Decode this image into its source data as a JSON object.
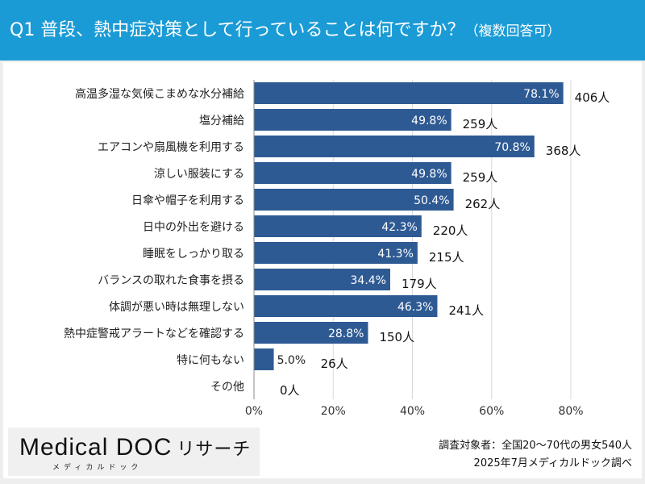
{
  "header": {
    "title": "Q1 普段、熱中症対策として行っていることは何ですか？",
    "subtitle": "（複数回答可）"
  },
  "chart_data": {
    "type": "bar",
    "orientation": "horizontal",
    "categories": [
      "高温多湿な気候こまめな水分補給",
      "塩分補給",
      "エアコンや扇風機を利用する",
      "涼しい服装にする",
      "日傘や帽子を利用する",
      "日中の外出を避ける",
      "睡眠をしっかり取る",
      "バランスの取れた食事を摂る",
      "体調が悪い時は無理しない",
      "熱中症警戒アラートなどを確認する",
      "特に何もない",
      "その他"
    ],
    "values": [
      78.1,
      49.8,
      70.8,
      49.8,
      50.4,
      42.3,
      41.3,
      34.4,
      46.3,
      28.8,
      5.0,
      0
    ],
    "value_labels": [
      "78.1%",
      "49.8%",
      "70.8%",
      "49.8%",
      "50.4%",
      "42.3%",
      "41.3%",
      "34.4%",
      "46.3%",
      "28.8%",
      "5.0%",
      ""
    ],
    "counts": [
      "406人",
      "259人",
      "368人",
      "259人",
      "262人",
      "220人",
      "215人",
      "179人",
      "241人",
      "150人",
      "26人",
      "0人"
    ],
    "xlim": [
      0,
      80
    ],
    "xticks": [
      "0%",
      "20%",
      "40%",
      "60%",
      "80%"
    ],
    "grid": true,
    "bar_color": "#2e5a94"
  },
  "logo": {
    "main": "Medical DOC",
    "suffix": "リサーチ",
    "kana": "メディカルドック"
  },
  "source": {
    "line1": "調査対象者：全国20〜70代の男女540人",
    "line2": "2025年7月メディカルドック調べ"
  }
}
